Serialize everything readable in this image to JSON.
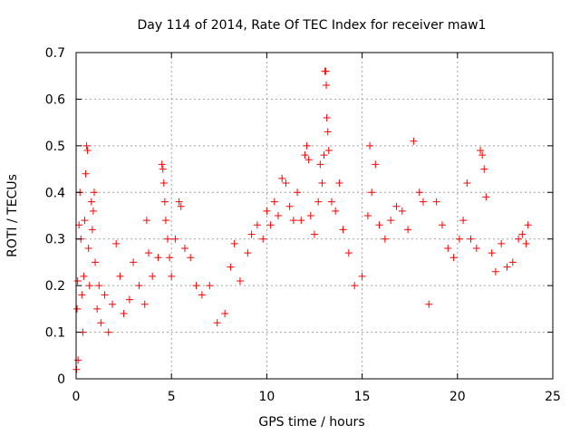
{
  "chart_data": {
    "type": "scatter",
    "title": "Day 114 of 2014, Rate Of TEC Index for receiver maw1",
    "xlabel": "GPS time / hours",
    "ylabel": "ROTI / TECUs",
    "xlim": [
      0,
      25
    ],
    "ylim": [
      0,
      0.7
    ],
    "x_ticks": [
      "0",
      "5",
      "10",
      "15",
      "20",
      "25"
    ],
    "y_ticks": [
      "0",
      "0.1",
      "0.2",
      "0.3",
      "0.4",
      "0.5",
      "0.6",
      "0.7"
    ],
    "grid": true,
    "marker": "+",
    "color": "#ff0000",
    "series": [
      {
        "points": [
          [
            0.02,
            0.02
          ],
          [
            0.05,
            0.15
          ],
          [
            0.08,
            0.21
          ],
          [
            0.1,
            0.04
          ],
          [
            0.15,
            0.33
          ],
          [
            0.2,
            0.4
          ],
          [
            0.25,
            0.3
          ],
          [
            0.3,
            0.18
          ],
          [
            0.35,
            0.1
          ],
          [
            0.4,
            0.22
          ],
          [
            0.45,
            0.34
          ],
          [
            0.5,
            0.44
          ],
          [
            0.55,
            0.5
          ],
          [
            0.6,
            0.49
          ],
          [
            0.65,
            0.28
          ],
          [
            0.7,
            0.2
          ],
          [
            0.8,
            0.38
          ],
          [
            0.85,
            0.32
          ],
          [
            0.9,
            0.36
          ],
          [
            0.95,
            0.4
          ],
          [
            1.0,
            0.25
          ],
          [
            1.1,
            0.15
          ],
          [
            1.2,
            0.2
          ],
          [
            1.3,
            0.12
          ],
          [
            1.5,
            0.18
          ],
          [
            1.7,
            0.1
          ],
          [
            1.9,
            0.16
          ],
          [
            2.1,
            0.29
          ],
          [
            2.3,
            0.22
          ],
          [
            2.5,
            0.14
          ],
          [
            2.8,
            0.17
          ],
          [
            3.0,
            0.25
          ],
          [
            3.3,
            0.2
          ],
          [
            3.6,
            0.16
          ],
          [
            3.7,
            0.34
          ],
          [
            3.8,
            0.27
          ],
          [
            4.0,
            0.22
          ],
          [
            4.3,
            0.26
          ],
          [
            4.5,
            0.46
          ],
          [
            4.55,
            0.45
          ],
          [
            4.6,
            0.42
          ],
          [
            4.65,
            0.38
          ],
          [
            4.7,
            0.34
          ],
          [
            4.8,
            0.3
          ],
          [
            4.9,
            0.26
          ],
          [
            5.0,
            0.22
          ],
          [
            5.2,
            0.3
          ],
          [
            5.4,
            0.38
          ],
          [
            5.5,
            0.37
          ],
          [
            5.7,
            0.28
          ],
          [
            6.0,
            0.26
          ],
          [
            6.3,
            0.2
          ],
          [
            6.6,
            0.18
          ],
          [
            7.0,
            0.2
          ],
          [
            7.4,
            0.12
          ],
          [
            7.8,
            0.14
          ],
          [
            8.1,
            0.24
          ],
          [
            8.3,
            0.29
          ],
          [
            8.6,
            0.21
          ],
          [
            9.0,
            0.27
          ],
          [
            9.2,
            0.31
          ],
          [
            9.5,
            0.33
          ],
          [
            9.8,
            0.3
          ],
          [
            10.0,
            0.36
          ],
          [
            10.2,
            0.33
          ],
          [
            10.4,
            0.38
          ],
          [
            10.6,
            0.35
          ],
          [
            10.8,
            0.43
          ],
          [
            11.0,
            0.42
          ],
          [
            11.2,
            0.37
          ],
          [
            11.4,
            0.34
          ],
          [
            11.6,
            0.4
          ],
          [
            11.8,
            0.34
          ],
          [
            12.0,
            0.48
          ],
          [
            12.1,
            0.5
          ],
          [
            12.2,
            0.47
          ],
          [
            12.3,
            0.35
          ],
          [
            12.5,
            0.31
          ],
          [
            12.7,
            0.38
          ],
          [
            12.8,
            0.46
          ],
          [
            12.9,
            0.42
          ],
          [
            13.0,
            0.48
          ],
          [
            13.05,
            0.66
          ],
          [
            13.1,
            0.66
          ],
          [
            13.12,
            0.63
          ],
          [
            13.15,
            0.56
          ],
          [
            13.2,
            0.53
          ],
          [
            13.25,
            0.49
          ],
          [
            13.4,
            0.38
          ],
          [
            13.6,
            0.36
          ],
          [
            13.8,
            0.42
          ],
          [
            14.0,
            0.32
          ],
          [
            14.3,
            0.27
          ],
          [
            14.6,
            0.2
          ],
          [
            15.0,
            0.22
          ],
          [
            15.3,
            0.35
          ],
          [
            15.4,
            0.5
          ],
          [
            15.5,
            0.4
          ],
          [
            15.7,
            0.46
          ],
          [
            15.9,
            0.33
          ],
          [
            16.2,
            0.3
          ],
          [
            16.5,
            0.34
          ],
          [
            16.8,
            0.37
          ],
          [
            17.1,
            0.36
          ],
          [
            17.4,
            0.32
          ],
          [
            17.7,
            0.51
          ],
          [
            18.0,
            0.4
          ],
          [
            18.2,
            0.38
          ],
          [
            18.5,
            0.16
          ],
          [
            18.9,
            0.38
          ],
          [
            19.2,
            0.33
          ],
          [
            19.5,
            0.28
          ],
          [
            19.8,
            0.26
          ],
          [
            20.1,
            0.3
          ],
          [
            20.3,
            0.34
          ],
          [
            20.5,
            0.42
          ],
          [
            20.7,
            0.3
          ],
          [
            21.0,
            0.28
          ],
          [
            21.2,
            0.49
          ],
          [
            21.3,
            0.48
          ],
          [
            21.4,
            0.45
          ],
          [
            21.5,
            0.39
          ],
          [
            21.8,
            0.27
          ],
          [
            22.0,
            0.23
          ],
          [
            22.3,
            0.29
          ],
          [
            22.6,
            0.24
          ],
          [
            22.9,
            0.25
          ],
          [
            23.2,
            0.3
          ],
          [
            23.4,
            0.31
          ],
          [
            23.6,
            0.29
          ],
          [
            23.7,
            0.33
          ]
        ]
      }
    ]
  }
}
